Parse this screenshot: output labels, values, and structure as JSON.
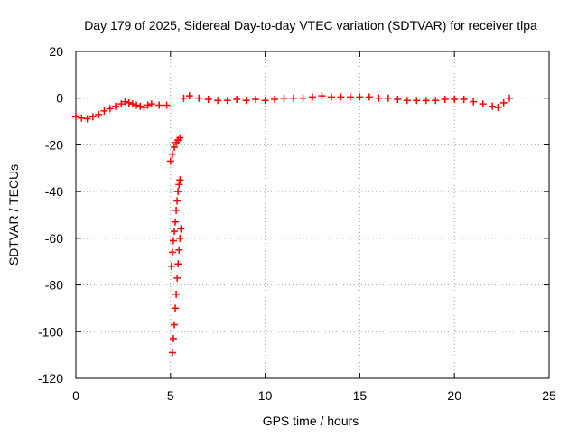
{
  "chart_data": {
    "type": "scatter",
    "title": "Day 179 of 2025, Sidereal Day-to-day VTEC variation (SDTVAR) for receiver tlpa",
    "xlabel": "GPS time / hours",
    "ylabel": "SDTVAR / TECUs",
    "xlim": [
      0,
      25
    ],
    "ylim": [
      -120,
      20
    ],
    "xticks": [
      0,
      5,
      10,
      15,
      20,
      25
    ],
    "yticks": [
      20,
      0,
      -20,
      -40,
      -60,
      -80,
      -100,
      -120
    ],
    "xtick_labels": [
      "0",
      "5",
      "10",
      "15",
      "20",
      "25"
    ],
    "ytick_labels": [
      "20",
      "0",
      "-20",
      "-40",
      "-60",
      "-80",
      "-100",
      "-120"
    ],
    "grid": true,
    "legend": "none",
    "marker": "plus",
    "series": [
      {
        "color": "#ff0000",
        "points": [
          [
            0.0,
            -8.0
          ],
          [
            0.3,
            -8.5
          ],
          [
            0.6,
            -8.8
          ],
          [
            0.9,
            -8.0
          ],
          [
            1.2,
            -7.0
          ],
          [
            1.5,
            -5.5
          ],
          [
            1.8,
            -4.5
          ],
          [
            2.1,
            -3.5
          ],
          [
            2.4,
            -2.5
          ],
          [
            2.6,
            -1.5
          ],
          [
            2.8,
            -2.0
          ],
          [
            3.0,
            -2.5
          ],
          [
            3.2,
            -3.0
          ],
          [
            3.4,
            -3.5
          ],
          [
            3.6,
            -4.0
          ],
          [
            3.8,
            -3.0
          ],
          [
            4.0,
            -2.5
          ],
          [
            4.4,
            -3.0
          ],
          [
            4.8,
            -3.0
          ],
          [
            5.0,
            -27.0
          ],
          [
            5.1,
            -24.0
          ],
          [
            5.2,
            -21.0
          ],
          [
            5.3,
            -19.0
          ],
          [
            5.4,
            -18.0
          ],
          [
            5.5,
            -17.0
          ],
          [
            5.05,
            -72.0
          ],
          [
            5.1,
            -66.0
          ],
          [
            5.15,
            -61.0
          ],
          [
            5.2,
            -57.0
          ],
          [
            5.25,
            -53.0
          ],
          [
            5.3,
            -48.0
          ],
          [
            5.35,
            -44.0
          ],
          [
            5.4,
            -40.0
          ],
          [
            5.45,
            -37.0
          ],
          [
            5.5,
            -35.0
          ],
          [
            5.1,
            -109.0
          ],
          [
            5.15,
            -103.0
          ],
          [
            5.2,
            -97.0
          ],
          [
            5.25,
            -90.0
          ],
          [
            5.3,
            -84.0
          ],
          [
            5.35,
            -77.0
          ],
          [
            5.4,
            -71.0
          ],
          [
            5.45,
            -65.0
          ],
          [
            5.5,
            -60.0
          ],
          [
            5.55,
            -56.0
          ],
          [
            5.7,
            0.0
          ],
          [
            6.0,
            1.0
          ],
          [
            6.5,
            0.0
          ],
          [
            7.0,
            -0.5
          ],
          [
            7.5,
            -1.0
          ],
          [
            8.0,
            -1.0
          ],
          [
            8.5,
            -0.5
          ],
          [
            9.0,
            -1.0
          ],
          [
            9.5,
            -0.5
          ],
          [
            10.0,
            -1.0
          ],
          [
            10.5,
            -0.5
          ],
          [
            11.0,
            0.0
          ],
          [
            11.5,
            0.0
          ],
          [
            12.0,
            0.0
          ],
          [
            12.5,
            0.5
          ],
          [
            13.0,
            1.0
          ],
          [
            13.5,
            0.5
          ],
          [
            14.0,
            0.5
          ],
          [
            14.5,
            0.5
          ],
          [
            15.0,
            0.5
          ],
          [
            15.5,
            0.5
          ],
          [
            16.0,
            0.0
          ],
          [
            16.5,
            0.0
          ],
          [
            17.0,
            -0.5
          ],
          [
            17.5,
            -1.0
          ],
          [
            18.0,
            -1.0
          ],
          [
            18.5,
            -1.0
          ],
          [
            19.0,
            -1.0
          ],
          [
            19.5,
            -0.5
          ],
          [
            20.0,
            -0.5
          ],
          [
            20.5,
            -0.5
          ],
          [
            21.0,
            -1.5
          ],
          [
            21.5,
            -2.5
          ],
          [
            22.0,
            -3.5
          ],
          [
            22.3,
            -4.0
          ],
          [
            22.6,
            -2.0
          ],
          [
            22.9,
            0.0
          ]
        ]
      }
    ]
  }
}
